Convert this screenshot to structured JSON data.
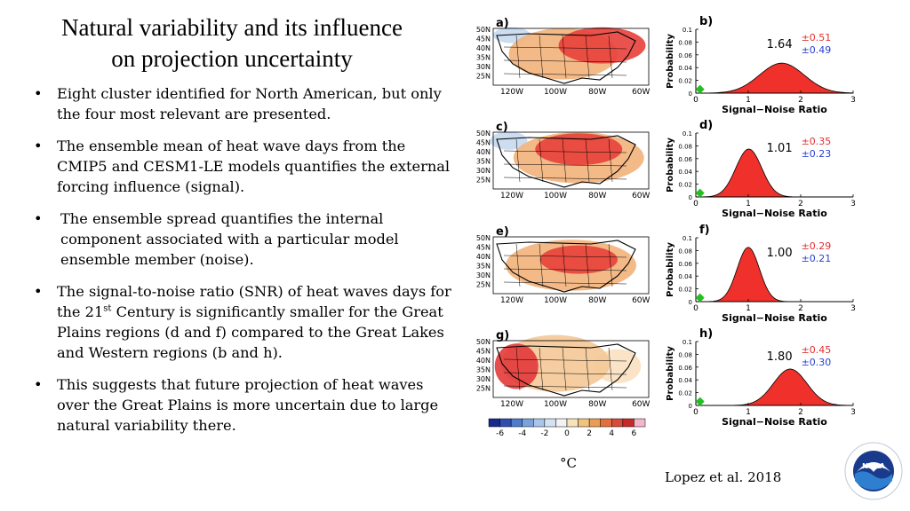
{
  "title_line1": "Natural variability and its influence",
  "title_line2": "on projection uncertainty",
  "bullets": [
    {
      "text": "Eight cluster identified for North American, but only the four most relevant are presented."
    },
    {
      "text": "The ensemble mean of heat wave days from the CMIP5 and CESM1-LE models quantifies the external forcing influence (signal)."
    },
    {
      "text": "The ensemble spread quantifies the internal component associated with a particular model ensemble member (noise)."
    },
    {
      "pre": "The signal-to-noise ratio (SNR) of heat waves days for the 21",
      "sup": "st",
      "post": " Century is significantly smaller for the Great Plains regions (d and f) compared to the Great Lakes and Western regions (b and h)."
    },
    {
      "text": "This suggests that future projection of heat waves over the Great Plains is more uncertain due to large natural variability there."
    }
  ],
  "maps": [
    {
      "label": "a)"
    },
    {
      "label": "c)"
    },
    {
      "label": "e)"
    },
    {
      "label": "g)"
    }
  ],
  "map_lat_ticks": [
    "50N",
    "45N",
    "40N",
    "35N",
    "30N",
    "25N"
  ],
  "map_lon_ticks": [
    "120W",
    "100W",
    "80W",
    "60W"
  ],
  "colorbar": {
    "ticks": [
      "-6",
      "-4",
      "-2",
      "0",
      "2",
      "4",
      "6"
    ],
    "colors": [
      "#1a2a8c",
      "#2e4fb0",
      "#4f7ccc",
      "#7aa3dc",
      "#a9c6ea",
      "#d3e3f4",
      "#f3f3f3",
      "#f7e3b8",
      "#f2c37c",
      "#eb9d52",
      "#e3703c",
      "#d84a3a",
      "#c82a2a",
      "#f4b6c8"
    ],
    "unit": "°C"
  },
  "chart_data": {
    "type": "area",
    "xlabel": "Signal−Noise Ratio",
    "ylabel": "Probability",
    "xlim": [
      0,
      3
    ],
    "ylim": [
      0,
      0.1
    ],
    "xticks": [
      0,
      1,
      2,
      3
    ],
    "yticks": [
      "0",
      "0.02",
      "0.04",
      "0.06",
      "0.08",
      "0.1"
    ],
    "panels": [
      {
        "label": "b)",
        "mean": 1.64,
        "mean_text": "1.64",
        "upper": "±0.51",
        "lower": "±0.49",
        "peak": 0.047,
        "marker_x": 0.08,
        "marker_y": 0.006
      },
      {
        "label": "d)",
        "mean": 1.01,
        "mean_text": "1.01",
        "upper": "±0.35",
        "lower": "±0.23",
        "peak": 0.075,
        "marker_x": 0.08,
        "marker_y": 0.006
      },
      {
        "label": "f)",
        "mean": 1.0,
        "mean_text": "1.00",
        "upper": "±0.29",
        "lower": "±0.21",
        "peak": 0.085,
        "marker_x": 0.08,
        "marker_y": 0.006
      },
      {
        "label": "h)",
        "mean": 1.8,
        "mean_text": "1.80",
        "upper": "±0.45",
        "lower": "±0.30",
        "peak": 0.057,
        "marker_x": 0.08,
        "marker_y": 0.006
      }
    ]
  },
  "credit": "Lopez et al. 2018",
  "logo_text": "NOAA",
  "colors": {
    "curve_fill": "#f0302a",
    "upper_text": "#e03030",
    "lower_text": "#2a40d0",
    "marker": "#22c020"
  }
}
